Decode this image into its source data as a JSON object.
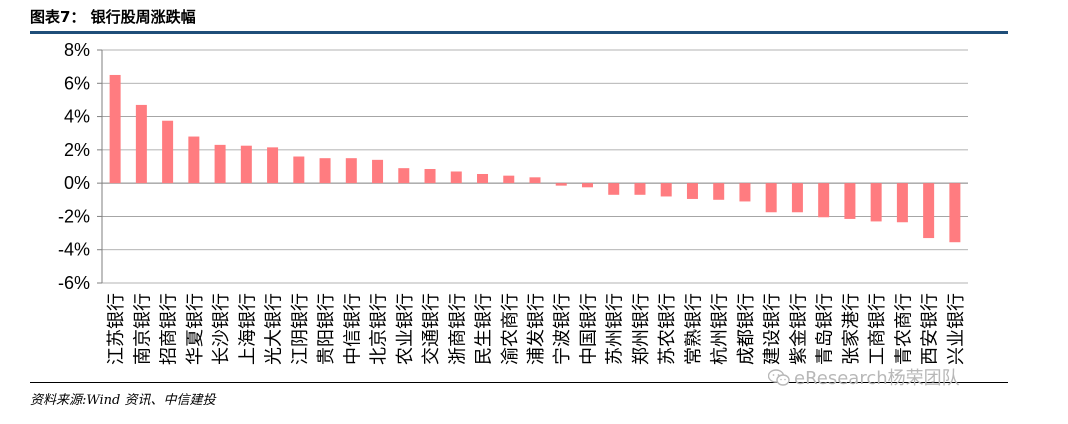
{
  "header": {
    "title": "图表7： 银行股周涨跌幅"
  },
  "footer": {
    "source": "资料来源:Wind 资讯、中信建投"
  },
  "watermark": {
    "text": "eResearch杨荣团队",
    "icon": "wechat-icon"
  },
  "colors": {
    "bar": "#ff7c80",
    "rule": "#1f4e79",
    "axis": "#7f7f7f",
    "grid": "#9a9a9a"
  },
  "chart_data": {
    "type": "bar",
    "title": "银行股周涨跌幅",
    "xlabel": "",
    "ylabel": "",
    "ylim": [
      -6,
      8
    ],
    "yticks": [
      8,
      6,
      4,
      2,
      0,
      -2,
      -4,
      -6
    ],
    "ytick_labels": [
      "8%",
      "6%",
      "4%",
      "2%",
      "0%",
      "-2%",
      "-4%",
      "-6%"
    ],
    "grid": true,
    "categories": [
      "江苏银行",
      "南京银行",
      "招商银行",
      "华夏银行",
      "长沙银行",
      "上海银行",
      "光大银行",
      "江阴银行",
      "贵阳银行",
      "中信银行",
      "北京银行",
      "农业银行",
      "交通银行",
      "浙商银行",
      "民生银行",
      "渝农商行",
      "浦发银行",
      "宁波银行",
      "中国银行",
      "苏州银行",
      "郑州银行",
      "苏农银行",
      "常熟银行",
      "杭州银行",
      "成都银行",
      "建设银行",
      "紫金银行",
      "青岛银行",
      "张家港行",
      "工商银行",
      "青农商行",
      "西安银行",
      "兴业银行"
    ],
    "values": [
      6.5,
      4.7,
      3.75,
      2.8,
      2.3,
      2.25,
      2.15,
      1.6,
      1.5,
      1.5,
      1.4,
      0.9,
      0.85,
      0.7,
      0.55,
      0.45,
      0.35,
      -0.15,
      -0.25,
      -0.7,
      -0.7,
      -0.8,
      -0.95,
      -1.0,
      -1.1,
      -1.75,
      -1.75,
      -2.05,
      -2.15,
      -2.3,
      -2.35,
      -3.3,
      -3.55
    ]
  }
}
